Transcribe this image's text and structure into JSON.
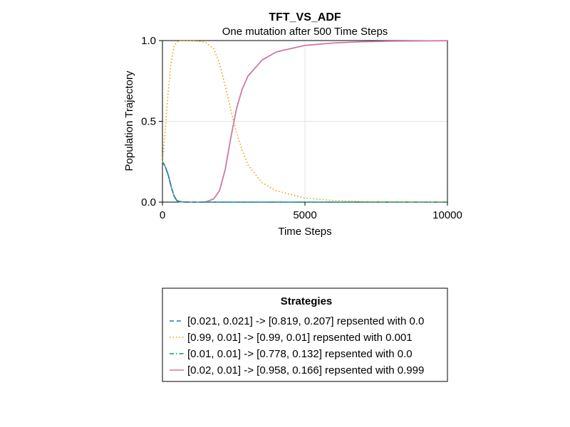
{
  "chart_data": {
    "type": "line",
    "title": "TFT_VS_ADF",
    "subtitle": "One mutation after 500 Time Steps",
    "xlabel": "Time Steps",
    "ylabel": "Population Trajectory",
    "xlim": [
      0,
      10000
    ],
    "ylim": [
      0,
      1
    ],
    "xticks": [
      0,
      5000,
      10000
    ],
    "xtick_labels": [
      "0",
      "5000",
      "10000"
    ],
    "yticks": [
      0,
      0.5,
      1
    ],
    "ytick_labels": [
      "0.0",
      "0.5",
      "1.0"
    ],
    "grid": true,
    "legend_title": "Strategies",
    "legend_placement": "bottom",
    "series": [
      {
        "name": "[0.021, 0.021] -> [0.819, 0.207] repsented with 0.0",
        "color": "#1f77c8",
        "dash": "dashed",
        "x": [
          0,
          100,
          200,
          300,
          400,
          500,
          600,
          800,
          1000,
          2000,
          5000,
          10000
        ],
        "y": [
          0.25,
          0.22,
          0.17,
          0.1,
          0.04,
          0.01,
          0.004,
          0.001,
          0.0,
          0.0,
          0.0,
          0.0
        ]
      },
      {
        "name": "[0.99, 0.01] -> [0.99, 0.01] repsented with 0.001",
        "color": "#e69f00",
        "dash": "dotted",
        "x": [
          0,
          100,
          200,
          300,
          400,
          500,
          600,
          700,
          1000,
          1500,
          1800,
          2000,
          2200,
          2400,
          2600,
          2800,
          3000,
          3500,
          4000,
          5000,
          6000,
          7000,
          8000,
          9000,
          10000
        ],
        "y": [
          0.25,
          0.45,
          0.68,
          0.86,
          0.96,
          0.99,
          1.0,
          1.0,
          1.0,
          0.99,
          0.95,
          0.86,
          0.72,
          0.57,
          0.43,
          0.32,
          0.23,
          0.12,
          0.07,
          0.025,
          0.01,
          0.004,
          0.002,
          0.001,
          0.001
        ]
      },
      {
        "name": "[0.01, 0.01] -> [0.778, 0.132] repsented with 0.0",
        "color": "#009e73",
        "dash": "dashdot",
        "x": [
          0,
          100,
          200,
          300,
          400,
          500,
          600,
          800,
          1000,
          2000,
          5000,
          10000
        ],
        "y": [
          0.25,
          0.22,
          0.17,
          0.1,
          0.04,
          0.01,
          0.004,
          0.001,
          0.0,
          0.0,
          0.0,
          0.0
        ]
      },
      {
        "name": "[0.02, 0.01] -> [0.958, 0.166] repsented with 0.999",
        "color": "#cc79a7",
        "dash": "solid",
        "x": [
          0,
          100,
          200,
          300,
          400,
          500,
          600,
          800,
          1000,
          1500,
          1800,
          2000,
          2200,
          2400,
          2600,
          2800,
          3000,
          3500,
          4000,
          5000,
          6000,
          7000,
          8000,
          9000,
          10000
        ],
        "y": [
          0.25,
          0.22,
          0.17,
          0.1,
          0.04,
          0.01,
          0.002,
          0.0,
          0.0,
          0.0,
          0.02,
          0.07,
          0.2,
          0.4,
          0.58,
          0.7,
          0.78,
          0.88,
          0.93,
          0.97,
          0.985,
          0.993,
          0.996,
          0.998,
          0.999
        ]
      }
    ]
  }
}
